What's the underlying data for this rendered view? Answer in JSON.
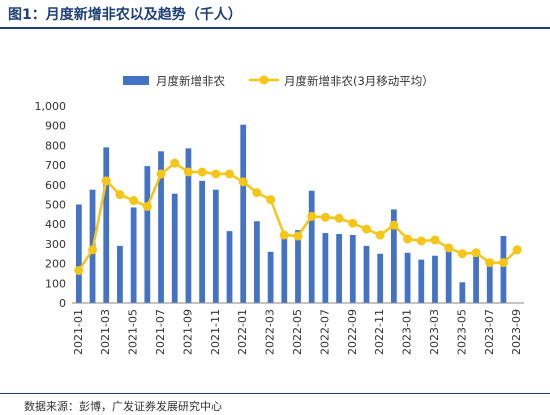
{
  "header": {
    "title": "图1：月度新增非农以及趋势（千人）"
  },
  "footer": {
    "source": "数据来源：彭博，广发证券发展研究中心"
  },
  "colors": {
    "bar": "#4472c4",
    "line": "#f5c518",
    "title": "#1f3f7a"
  },
  "chart_data": {
    "type": "bar",
    "title": "月度新增非农以及趋势（千人）",
    "xlabel": "",
    "ylabel": "",
    "ylim": [
      0,
      1000
    ],
    "yticks": [
      0,
      100,
      200,
      300,
      400,
      500,
      600,
      700,
      800,
      900,
      1000
    ],
    "ytick_labels": [
      "0",
      "100",
      "200",
      "300",
      "400",
      "500",
      "600",
      "700",
      "800",
      "900",
      "1,000"
    ],
    "grid": false,
    "legend_position": "top",
    "x": [
      "2021-01",
      "2021-02",
      "2021-03",
      "2021-04",
      "2021-05",
      "2021-06",
      "2021-07",
      "2021-08",
      "2021-09",
      "2021-10",
      "2021-11",
      "2021-12",
      "2022-01",
      "2022-02",
      "2022-03",
      "2022-04",
      "2022-05",
      "2022-06",
      "2022-07",
      "2022-08",
      "2022-09",
      "2022-10",
      "2022-11",
      "2022-12",
      "2023-01",
      "2023-02",
      "2023-03",
      "2023-04",
      "2023-05",
      "2023-06",
      "2023-07",
      "2023-08",
      "2023-09"
    ],
    "xtick_labels": [
      "2021-01",
      "2021-03",
      "2021-05",
      "2021-07",
      "2021-09",
      "2021-11",
      "2022-01",
      "2022-03",
      "2022-05",
      "2022-07",
      "2022-09",
      "2022-11",
      "2023-01",
      "2023-03",
      "2023-05",
      "2023-07",
      "2023-09"
    ],
    "series": [
      {
        "name": "月度新增非农",
        "type": "bar",
        "values": [
          500,
          575,
          790,
          290,
          485,
          695,
          770,
          555,
          785,
          620,
          575,
          365,
          905,
          415,
          260,
          345,
          370,
          570,
          355,
          350,
          345,
          290,
          250,
          475,
          255,
          220,
          240,
          285,
          105,
          240,
          190,
          340,
          0
        ]
      },
      {
        "name": "月度新增非农(3月移动平均）",
        "type": "line",
        "values": [
          165,
          270,
          620,
          550,
          520,
          490,
          655,
          710,
          665,
          665,
          655,
          655,
          615,
          560,
          525,
          345,
          340,
          440,
          435,
          430,
          405,
          375,
          345,
          395,
          325,
          315,
          320,
          280,
          250,
          255,
          205,
          205,
          270
        ]
      }
    ]
  }
}
